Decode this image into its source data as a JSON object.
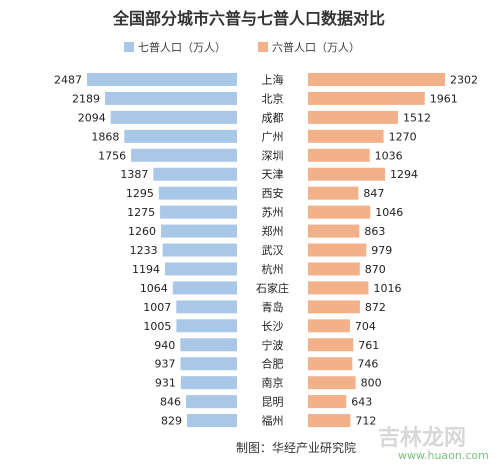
{
  "chart_data": {
    "type": "bar",
    "title": "全国部分城市六普与七普人口数据对比",
    "legend_position": "top",
    "categories": [
      "上海",
      "北京",
      "成都",
      "广州",
      "深圳",
      "天津",
      "西安",
      "苏州",
      "郑州",
      "武汉",
      "杭州",
      "石家庄",
      "青岛",
      "长沙",
      "宁波",
      "合肥",
      "南京",
      "昆明",
      "福州"
    ],
    "series": [
      {
        "name": "七普人口（万人）",
        "color": "#a9c7e6",
        "side": "left",
        "values": [
          2487,
          2189,
          2094,
          1868,
          1756,
          1387,
          1295,
          1275,
          1260,
          1233,
          1194,
          1064,
          1007,
          1005,
          940,
          937,
          931,
          846,
          829
        ]
      },
      {
        "name": "六普人口（万人）",
        "color": "#f3b18a",
        "side": "right",
        "values": [
          2302,
          1961,
          1512,
          1270,
          1036,
          1294,
          847,
          1046,
          863,
          979,
          870,
          1016,
          872,
          704,
          761,
          746,
          800,
          643,
          712
        ]
      }
    ],
    "credit": "制图：华经产业研究院",
    "grid": false
  },
  "watermark": {
    "text": "吉林龙网",
    "url": "www.huaon.com"
  }
}
